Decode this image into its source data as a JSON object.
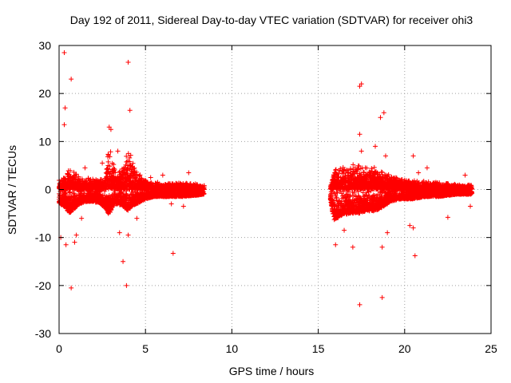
{
  "chart_data": {
    "type": "scatter",
    "title": "Day 192 of 2011, Sidereal Day-to-day VTEC variation (SDTVAR) for receiver ohi3",
    "xlabel": "GPS time / hours",
    "ylabel": "SDTVAR / TECUs",
    "xlim": [
      0,
      25
    ],
    "ylim": [
      -30,
      30
    ],
    "xticks": [
      0,
      5,
      10,
      15,
      20,
      25
    ],
    "yticks": [
      -30,
      -20,
      -10,
      0,
      10,
      20,
      30
    ],
    "grid": true,
    "legend": "none",
    "marker": "+",
    "series": [
      {
        "name": "SDTVAR",
        "color": "#ff0000",
        "segments": [
          {
            "x_range": [
              0.0,
              8.4
            ],
            "envelope": [
              [
                0.0,
                2.5,
                -3.0
              ],
              [
                0.3,
                3.0,
                -3.5
              ],
              [
                0.6,
                5.5,
                -5.0
              ],
              [
                0.9,
                4.0,
                -4.0
              ],
              [
                1.2,
                3.0,
                -3.0
              ],
              [
                1.6,
                2.5,
                -2.5
              ],
              [
                2.0,
                2.5,
                -2.5
              ],
              [
                2.4,
                2.5,
                -3.0
              ],
              [
                2.7,
                4.5,
                -4.0
              ],
              [
                2.9,
                10.5,
                -5.5
              ],
              [
                3.1,
                7.0,
                -3.5
              ],
              [
                3.4,
                4.0,
                -3.0
              ],
              [
                3.7,
                5.0,
                -3.5
              ],
              [
                4.0,
                10.0,
                -4.5
              ],
              [
                4.2,
                7.0,
                -3.5
              ],
              [
                4.5,
                4.0,
                -3.0
              ],
              [
                5.0,
                2.0,
                -2.0
              ],
              [
                5.5,
                1.5,
                -1.5
              ],
              [
                6.0,
                1.5,
                -1.5
              ],
              [
                7.0,
                1.5,
                -1.5
              ],
              [
                8.0,
                1.2,
                -1.2
              ],
              [
                8.4,
                1.0,
                -1.0
              ]
            ]
          },
          {
            "x_range": [
              15.7,
              23.9
            ],
            "envelope": [
              [
                15.7,
                1.0,
                -2.0
              ],
              [
                15.9,
                4.5,
                -6.5
              ],
              [
                16.3,
                5.0,
                -5.5
              ],
              [
                16.8,
                5.5,
                -5.0
              ],
              [
                17.3,
                5.5,
                -5.0
              ],
              [
                17.8,
                5.0,
                -4.5
              ],
              [
                18.3,
                5.0,
                -4.5
              ],
              [
                18.8,
                4.0,
                -3.5
              ],
              [
                19.2,
                3.0,
                -2.5
              ],
              [
                19.8,
                2.5,
                -2.0
              ],
              [
                20.5,
                2.0,
                -2.0
              ],
              [
                21.2,
                2.0,
                -1.5
              ],
              [
                22.0,
                1.5,
                -1.5
              ],
              [
                23.0,
                1.2,
                -1.0
              ],
              [
                23.9,
                1.0,
                -1.0
              ]
            ]
          }
        ],
        "outliers": [
          [
            0.3,
            28.5
          ],
          [
            0.7,
            23.0
          ],
          [
            0.35,
            17.0
          ],
          [
            0.3,
            13.5
          ],
          [
            0.7,
            -20.5
          ],
          [
            0.1,
            -10.0
          ],
          [
            0.4,
            -11.5
          ],
          [
            0.9,
            -11.0
          ],
          [
            1.0,
            -9.5
          ],
          [
            1.3,
            -6.0
          ],
          [
            1.5,
            4.5
          ],
          [
            2.5,
            5.5
          ],
          [
            2.9,
            13.0
          ],
          [
            3.0,
            12.5
          ],
          [
            3.4,
            8.0
          ],
          [
            3.7,
            -15.0
          ],
          [
            3.9,
            -20.0
          ],
          [
            4.0,
            26.5
          ],
          [
            4.1,
            16.5
          ],
          [
            4.0,
            -9.5
          ],
          [
            3.5,
            -9.0
          ],
          [
            4.5,
            -6.0
          ],
          [
            5.3,
            2.5
          ],
          [
            6.0,
            3.0
          ],
          [
            6.6,
            -13.3
          ],
          [
            6.5,
            -3.0
          ],
          [
            7.2,
            -3.5
          ],
          [
            7.5,
            3.5
          ],
          [
            17.4,
            21.5
          ],
          [
            17.5,
            22.0
          ],
          [
            17.4,
            11.5
          ],
          [
            17.4,
            -24.0
          ],
          [
            18.7,
            -22.5
          ],
          [
            18.8,
            16.0
          ],
          [
            18.6,
            15.0
          ],
          [
            18.3,
            9.0
          ],
          [
            17.5,
            8.0
          ],
          [
            20.6,
            -13.8
          ],
          [
            18.9,
            7.0
          ],
          [
            20.5,
            7.0
          ],
          [
            20.3,
            -7.5
          ],
          [
            20.5,
            -8.0
          ],
          [
            16.0,
            -11.5
          ],
          [
            17.0,
            -12.0
          ],
          [
            18.7,
            -12.0
          ],
          [
            19.0,
            -9.0
          ],
          [
            16.5,
            -8.5
          ],
          [
            22.5,
            -5.8
          ],
          [
            23.8,
            -3.5
          ],
          [
            23.5,
            3.0
          ],
          [
            21.3,
            4.5
          ],
          [
            20.8,
            3.5
          ]
        ]
      }
    ]
  }
}
